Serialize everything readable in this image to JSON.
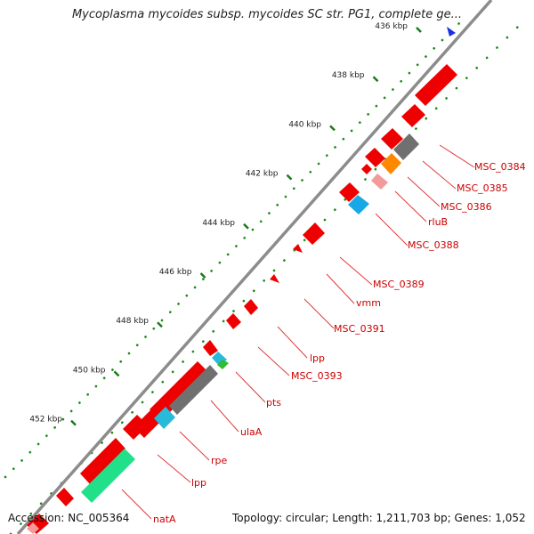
{
  "title": "Mycoplasma mycoides subsp. mycoides SC str. PG1, complete ge...",
  "footer": {
    "accession": "Accession: NC_005364",
    "summary": "Topology: circular; Length: 1,211,703 bp; Genes: 1,052"
  },
  "colors": {
    "backbone": "#8c8c8c",
    "tick": "#1a7a1a",
    "label": "#cc0000",
    "cds": "#ee0000"
  },
  "ticks": [
    "436 kbp",
    "438 kbp",
    "440 kbp",
    "442 kbp",
    "444 kbp",
    "446 kbp",
    "448 kbp",
    "450 kbp",
    "452 kbp"
  ],
  "gene_labels": [
    "MSC_0384",
    "MSC_0385",
    "MSC_0386",
    "rluB",
    "MSC_0388",
    "MSC_0389",
    "vmm",
    "MSC_0391",
    "lpp",
    "MSC_0393",
    "pts",
    "ulaA",
    "rpe",
    "lpp",
    "natA"
  ]
}
